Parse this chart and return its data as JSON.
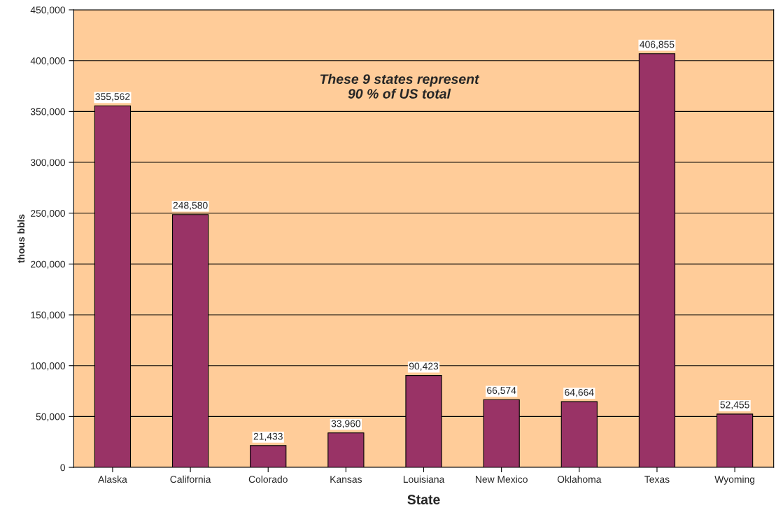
{
  "chart_data": {
    "type": "bar",
    "xlabel": "State",
    "ylabel": "thous bbls",
    "categories": [
      "Alaska",
      "California",
      "Colorado",
      "Kansas",
      "Louisiana",
      "New Mexico",
      "Oklahoma",
      "Texas",
      "Wyoming"
    ],
    "values": [
      355562,
      248580,
      21433,
      33960,
      90423,
      66574,
      64664,
      406855,
      52455
    ],
    "color": "#993366",
    "ylim": [
      0,
      450000
    ],
    "yticks": [
      {
        "value": 0,
        "label": "0"
      },
      {
        "value": 50000,
        "label": "50,000"
      },
      {
        "value": 100000,
        "label": "100,000"
      },
      {
        "value": 150000,
        "label": "150,000"
      },
      {
        "value": 200000,
        "label": "200,000"
      },
      {
        "value": 250000,
        "label": "250,000"
      },
      {
        "value": 300000,
        "label": "300,000"
      },
      {
        "value": 350000,
        "label": "350,000"
      },
      {
        "value": 400000,
        "label": "400,000"
      },
      {
        "value": 450000,
        "label": "450,000"
      }
    ],
    "grid": "y",
    "value_labels": [
      "355,562",
      "248,580",
      "21,433",
      "33,960",
      "90,423",
      "66,574",
      "64,664",
      "406,855",
      "52,455"
    ],
    "legend": false,
    "annotations": [
      "These 9 states represent 90 % of US total"
    ]
  }
}
